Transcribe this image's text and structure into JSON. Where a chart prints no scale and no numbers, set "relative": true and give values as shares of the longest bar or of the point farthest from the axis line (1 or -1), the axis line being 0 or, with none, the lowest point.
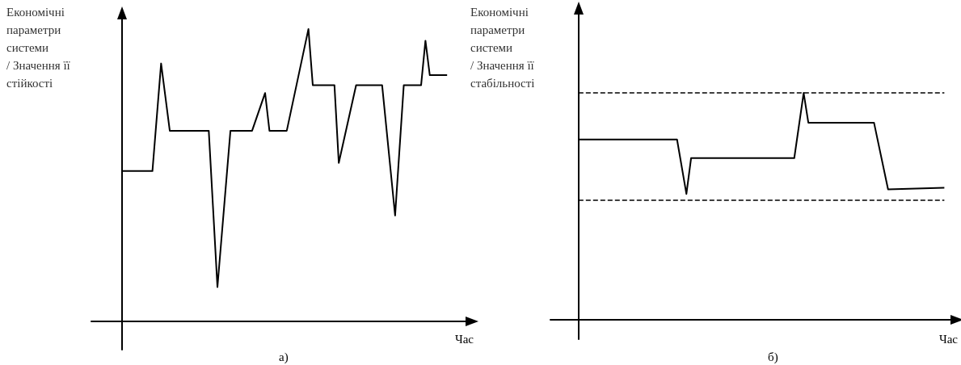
{
  "chart_data": [
    {
      "type": "line",
      "relative": true,
      "ylabel": "Економічні параметри системи / Значення її стійкості",
      "xlabel": "Час",
      "annotations": [
        "а)"
      ],
      "categories": [
        null,
        null,
        null,
        null,
        null,
        null,
        null,
        null,
        null,
        null,
        null,
        null,
        null,
        null,
        null,
        null,
        null,
        null,
        null,
        null,
        null,
        null,
        null,
        null,
        null,
        null,
        null,
        null,
        null,
        null,
        null,
        null,
        null,
        null,
        null,
        null,
        null,
        null,
        null,
        null,
        null,
        null,
        null,
        null,
        null,
        null,
        null,
        null,
        null,
        null,
        null,
        null,
        null,
        null,
        null,
        null,
        null,
        null,
        null,
        null,
        null,
        null,
        null,
        null,
        null,
        null,
        null,
        null,
        null,
        null,
        null,
        null,
        null,
        null,
        null,
        null
      ],
      "series": [
        {
          "color": "#000000",
          "values": [
            0.514,
            null,
            null,
            null,
            null,
            null,
            null,
            0.514,
            null,
            0.882,
            null,
            0.652,
            null,
            null,
            null,
            null,
            null,
            null,
            null,
            null,
            0.652,
            null,
            0.117,
            null,
            null,
            0.652,
            null,
            null,
            null,
            null,
            0.652,
            null,
            null,
            0.781,
            0.652,
            null,
            null,
            null,
            0.652,
            null,
            null,
            null,
            null,
            1.0,
            0.808,
            null,
            null,
            null,
            null,
            0.808,
            0.542,
            null,
            null,
            null,
            0.808,
            null,
            null,
            null,
            null,
            null,
            0.808,
            null,
            null,
            0.362,
            null,
            0.808,
            null,
            null,
            null,
            0.808,
            0.96,
            0.842,
            null,
            null,
            null,
            0.842
          ]
        }
      ]
    },
    {
      "type": "line",
      "relative": true,
      "ylabel": "Економічні параметри системи / Значення її стабільності",
      "xlabel": "Час",
      "annotations": [
        "б)"
      ],
      "categories": [
        null,
        null,
        null,
        null,
        null,
        null,
        null,
        null,
        null,
        null,
        null,
        null,
        null,
        null,
        null,
        null,
        null,
        null,
        null,
        null,
        null,
        null,
        null,
        null,
        null,
        null,
        null,
        null,
        null,
        null,
        null,
        null,
        null,
        null,
        null,
        null,
        null,
        null,
        null,
        null,
        null,
        null,
        null,
        null,
        null,
        null,
        null,
        null,
        null,
        null,
        null,
        null,
        null,
        null,
        null,
        null,
        null,
        null,
        null,
        null,
        null,
        null,
        null,
        null,
        null,
        null,
        null,
        null,
        null,
        null,
        null,
        null,
        null,
        null,
        null,
        null,
        null,
        null,
        null
      ],
      "series": [
        {
          "color": "#000000",
          "values": [
            0.795,
            null,
            null,
            null,
            null,
            null,
            null,
            null,
            null,
            null,
            null,
            null,
            null,
            null,
            null,
            null,
            null,
            null,
            null,
            null,
            null,
            0.795,
            null,
            0.555,
            0.713,
            null,
            null,
            null,
            null,
            null,
            null,
            null,
            null,
            null,
            null,
            null,
            null,
            null,
            null,
            null,
            null,
            null,
            null,
            null,
            null,
            null,
            0.713,
            null,
            1.0,
            0.869,
            null,
            null,
            null,
            null,
            null,
            null,
            null,
            null,
            null,
            null,
            null,
            null,
            null,
            0.869,
            null,
            null,
            0.575,
            null,
            null,
            null,
            null,
            null,
            null,
            null,
            null,
            null,
            null,
            null,
            0.582
          ]
        }
      ],
      "ref_lines": [
        {
          "axis": "y",
          "value": 1.0,
          "color": "#000000",
          "line_style": "dashed"
        },
        {
          "axis": "y",
          "value": 0.527,
          "color": "#000000",
          "line_style": "dashed"
        }
      ]
    }
  ]
}
